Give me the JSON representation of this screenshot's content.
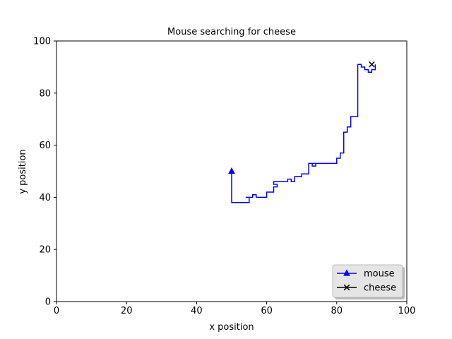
{
  "chart_data": {
    "type": "line",
    "title": "Mouse searching for cheese",
    "xlabel": "x position",
    "ylabel": "y position",
    "xlim": [
      0,
      100
    ],
    "ylim": [
      0,
      100
    ],
    "xticks": [
      0,
      20,
      40,
      60,
      80,
      100
    ],
    "yticks": [
      0,
      20,
      40,
      60,
      80,
      100
    ],
    "grid": false,
    "legend_position": "bottom-right",
    "series": [
      {
        "name": "mouse",
        "color": "#0000ff",
        "marker": "triangle",
        "x": [
          50,
          50,
          55,
          55,
          54,
          56,
          56,
          57,
          57,
          60,
          60,
          62,
          62,
          63,
          63,
          62,
          62,
          66,
          66,
          67,
          67,
          68,
          68,
          70,
          70,
          72,
          72,
          73,
          73,
          74,
          74,
          73,
          73,
          80,
          80,
          81,
          81,
          82,
          82,
          83,
          83,
          84,
          84,
          86,
          86,
          87,
          87,
          88,
          88,
          89,
          89,
          90,
          90,
          91,
          91
        ],
        "y": [
          50,
          38,
          38,
          40,
          40,
          40,
          41,
          41,
          40,
          40,
          42,
          42,
          44,
          44,
          45,
          45,
          46,
          46,
          47,
          47,
          46,
          46,
          48,
          48,
          49,
          49,
          53,
          53,
          52,
          52,
          53,
          53,
          53,
          53,
          55,
          55,
          57,
          57,
          65,
          65,
          67,
          67,
          71,
          71,
          91,
          91,
          90,
          90,
          89,
          89,
          88,
          88,
          89,
          89,
          91
        ]
      },
      {
        "name": "cheese",
        "color": "#000000",
        "marker": "x",
        "x": [
          90
        ],
        "y": [
          91
        ]
      }
    ]
  }
}
